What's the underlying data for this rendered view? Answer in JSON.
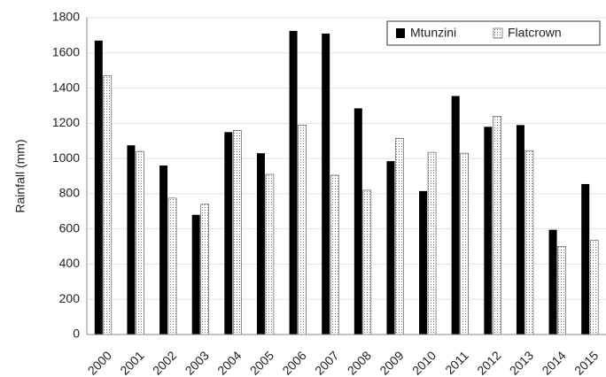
{
  "chart_data": {
    "type": "bar",
    "y_label": "Rainfall (mm)",
    "categories": [
      "2000",
      "2001",
      "2002",
      "2003",
      "2004",
      "2005",
      "2006",
      "2007",
      "2008",
      "2009",
      "2010",
      "2011",
      "2012",
      "2013",
      "2014",
      "2015"
    ],
    "series": [
      {
        "name": "Mtunzini",
        "color": "#000000",
        "pattern": "solid",
        "values": [
          1670,
          1075,
          960,
          680,
          1150,
          1030,
          1725,
          1710,
          1285,
          985,
          815,
          1355,
          1180,
          1190,
          595,
          855
        ]
      },
      {
        "name": "Flatcrown",
        "color": "#9a9a9a",
        "pattern": "dots",
        "values": [
          1470,
          1040,
          775,
          740,
          1160,
          910,
          1190,
          905,
          820,
          1115,
          1035,
          1030,
          1240,
          1045,
          500,
          535
        ]
      }
    ],
    "ylim": [
      0,
      1800
    ],
    "yticks": [
      0,
      200,
      400,
      600,
      800,
      1000,
      1200,
      1400,
      1600,
      1800
    ],
    "grid": true,
    "legend": "top-right"
  }
}
